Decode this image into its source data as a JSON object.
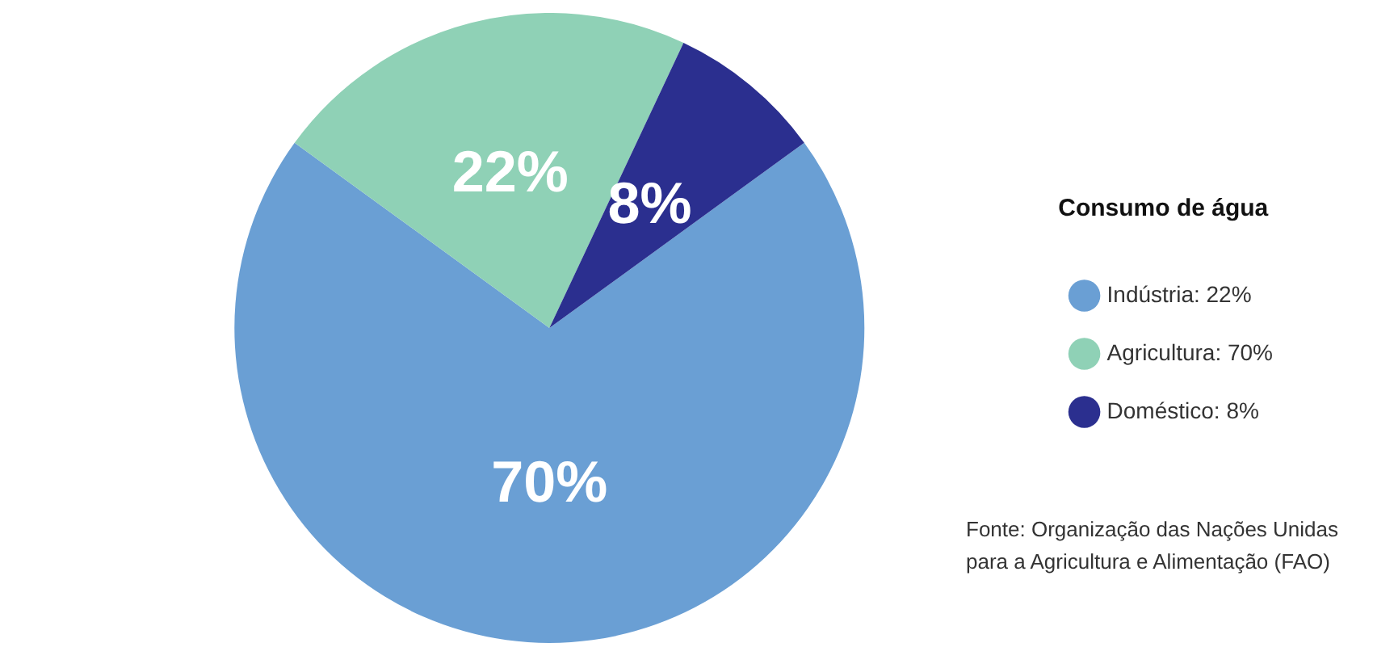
{
  "chart_data": {
    "type": "pie",
    "legend_title": "Consumo de água",
    "legend": "right",
    "categories": [
      "Indústria: 22%",
      "Agricultura: 70%",
      "Doméstico: 8%"
    ],
    "values": [
      70,
      22,
      8
    ],
    "colors": [
      "#6a9fd4",
      "#8fd1b6",
      "#2b2f8f"
    ],
    "value_labels": [
      "70%",
      "22%",
      "8%"
    ],
    "annotations": [
      "Fonte: Organização das Nações Unidas para a Agricultura e Alimentação (FAO)"
    ]
  }
}
